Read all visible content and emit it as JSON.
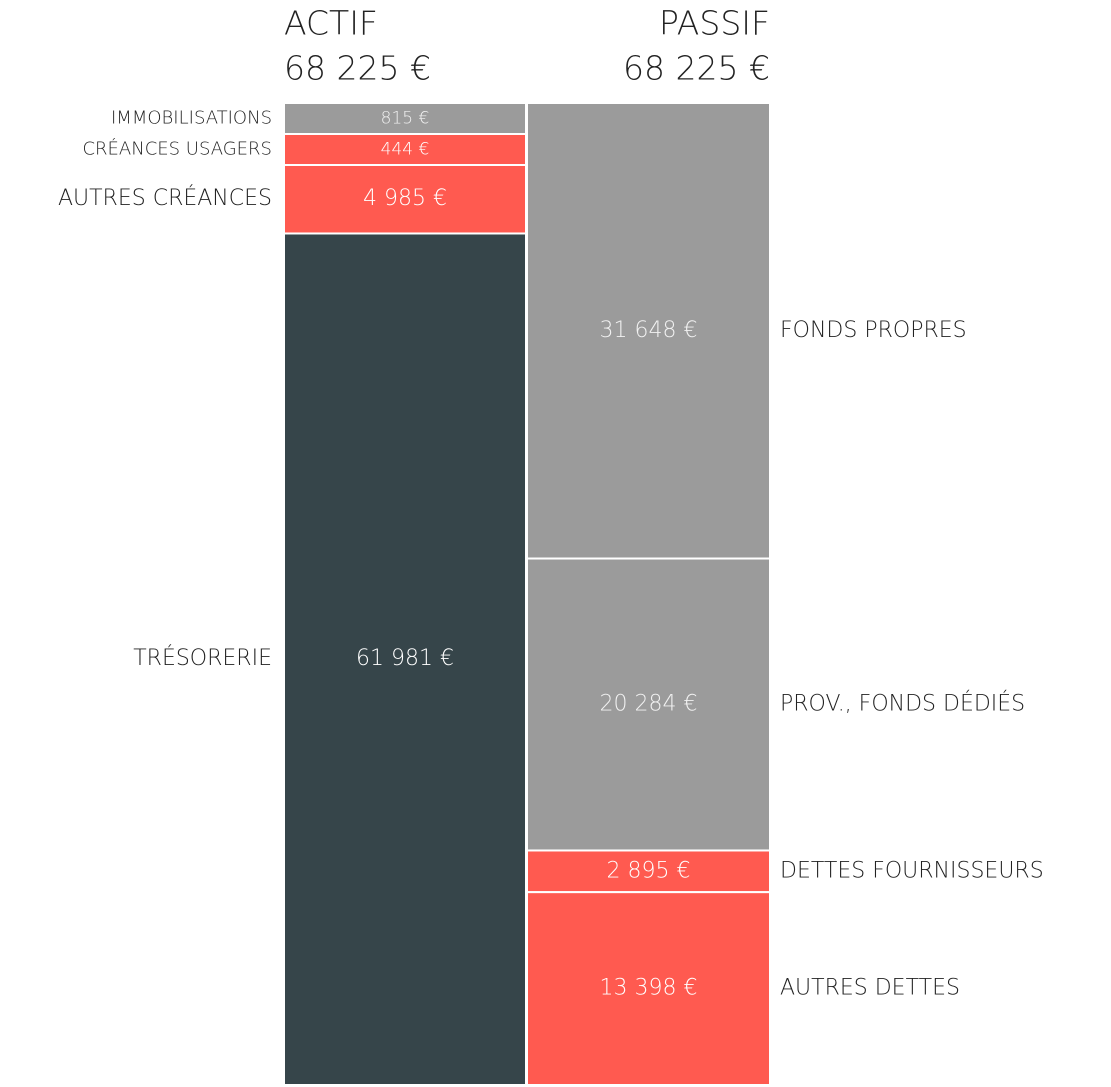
{
  "chart_data": {
    "type": "balance",
    "columns": [
      {
        "title": "ACTIF",
        "total": 68225,
        "total_label": "68 225 €",
        "categories": [
          "IMMOBILISATIONS",
          "CRÉANCES USAGERS",
          "AUTRES CRÉANCES",
          "TRÉSORERIE"
        ],
        "values": [
          815,
          444,
          4985,
          61981
        ],
        "value_labels": [
          "815 €",
          "444 €",
          "4 985 €",
          "61 981 €"
        ],
        "colors": [
          "#9b9b9b",
          "#ff5a50",
          "#ff5a50",
          "#36454a"
        ]
      },
      {
        "title": "PASSIF",
        "total": 68225,
        "total_label": "68 225 €",
        "categories": [
          "FONDS PROPRES",
          "PROV., FONDS DÉDIÉS",
          "DETTES FOURNISSEURS",
          "AUTRES DETTES"
        ],
        "values": [
          31648,
          20284,
          2895,
          13398
        ],
        "value_labels": [
          "31 648 €",
          "20 284 €",
          "2 895 €",
          "13 398 €"
        ],
        "colors": [
          "#9b9b9b",
          "#9b9b9b",
          "#ff5a50",
          "#ff5a50"
        ]
      }
    ]
  }
}
